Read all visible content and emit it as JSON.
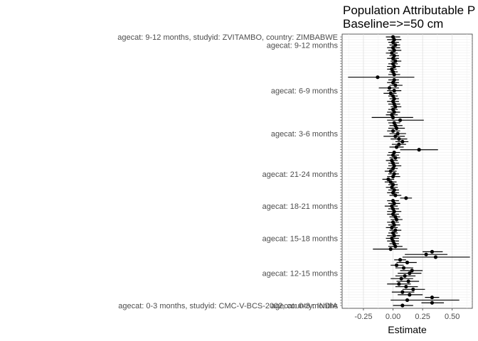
{
  "chart_data": {
    "type": "forest",
    "title": "Population Attributable P",
    "subtitle": "Baseline=>=50 cm",
    "xlabel": "Estimate",
    "ylabel": "",
    "xlim": [
      -0.43,
      0.67
    ],
    "x_ticks": [
      -0.25,
      0.0,
      0.25,
      0.5
    ],
    "x_tick_labels": [
      "-0.25",
      "0.00",
      "0.25",
      "0.50"
    ],
    "grid": true,
    "y_tick_labels_visible": [
      "agecat: 9-12 months, studyid: ZVITAMBO, country: ZIMBABWE",
      "agecat: 9-12 months",
      "agecat: 6-9 months",
      "agecat: 3-6 months",
      "agecat: 21-24 months",
      "agecat: 18-21 months",
      "agecat: 15-18 months",
      "agecat: 12-15 months",
      "agecat: 0-3 months",
      "agecat: 0-3 months, studyid: CMC-V-BCS-2002, country: INDIA"
    ],
    "point_color": "#000000",
    "points": [
      {
        "est": 0.0,
        "lo": -0.06,
        "hi": 0.06
      },
      {
        "est": 0.01,
        "lo": -0.05,
        "hi": 0.07
      },
      {
        "est": 0.0,
        "lo": -0.04,
        "hi": 0.05
      },
      {
        "est": 0.02,
        "lo": -0.03,
        "hi": 0.06
      },
      {
        "est": 0.0,
        "lo": -0.05,
        "hi": 0.06
      },
      {
        "est": 0.01,
        "lo": -0.04,
        "hi": 0.07
      },
      {
        "est": -0.01,
        "lo": -0.06,
        "hi": 0.04
      },
      {
        "est": 0.01,
        "lo": -0.03,
        "hi": 0.05
      },
      {
        "est": 0.0,
        "lo": -0.05,
        "hi": 0.05
      },
      {
        "est": 0.02,
        "lo": -0.02,
        "hi": 0.07
      },
      {
        "est": 0.0,
        "lo": -0.04,
        "hi": 0.04
      },
      {
        "est": 0.01,
        "lo": -0.05,
        "hi": 0.06
      },
      {
        "est": -0.01,
        "lo": -0.05,
        "hi": 0.03
      },
      {
        "est": 0.0,
        "lo": -0.03,
        "hi": 0.04
      },
      {
        "est": 0.01,
        "lo": -0.04,
        "hi": 0.06
      },
      {
        "est": -0.13,
        "lo": -0.38,
        "hi": 0.18
      },
      {
        "est": 0.01,
        "lo": -0.04,
        "hi": 0.05
      },
      {
        "est": 0.0,
        "lo": -0.05,
        "hi": 0.05
      },
      {
        "est": 0.02,
        "lo": -0.03,
        "hi": 0.08
      },
      {
        "est": -0.03,
        "lo": -0.12,
        "hi": 0.05
      },
      {
        "est": 0.01,
        "lo": -0.05,
        "hi": 0.07
      },
      {
        "est": -0.02,
        "lo": -0.08,
        "hi": 0.03
      },
      {
        "est": 0.0,
        "lo": -0.04,
        "hi": 0.04
      },
      {
        "est": 0.01,
        "lo": -0.03,
        "hi": 0.05
      },
      {
        "est": 0.0,
        "lo": -0.05,
        "hi": 0.05
      },
      {
        "est": 0.01,
        "lo": -0.04,
        "hi": 0.06
      },
      {
        "est": 0.02,
        "lo": -0.02,
        "hi": 0.07
      },
      {
        "est": 0.0,
        "lo": -0.04,
        "hi": 0.04
      },
      {
        "est": 0.01,
        "lo": -0.05,
        "hi": 0.06
      },
      {
        "est": -0.01,
        "lo": -0.06,
        "hi": 0.04
      },
      {
        "est": 0.0,
        "lo": -0.18,
        "hi": 0.17
      },
      {
        "est": 0.06,
        "lo": -0.05,
        "hi": 0.26
      },
      {
        "est": 0.01,
        "lo": -0.04,
        "hi": 0.06
      },
      {
        "est": 0.02,
        "lo": -0.03,
        "hi": 0.08
      },
      {
        "est": 0.03,
        "lo": -0.04,
        "hi": 0.1
      },
      {
        "est": 0.0,
        "lo": -0.05,
        "hi": 0.06
      },
      {
        "est": 0.04,
        "lo": -0.03,
        "hi": 0.11
      },
      {
        "est": 0.02,
        "lo": -0.08,
        "hi": 0.1
      },
      {
        "est": 0.05,
        "lo": -0.02,
        "hi": 0.12
      },
      {
        "est": 0.08,
        "lo": 0.02,
        "hi": 0.13
      },
      {
        "est": 0.05,
        "lo": -0.01,
        "hi": 0.11
      },
      {
        "est": 0.03,
        "lo": -0.03,
        "hi": 0.09
      },
      {
        "est": 0.22,
        "lo": 0.06,
        "hi": 0.38
      },
      {
        "est": 0.01,
        "lo": -0.04,
        "hi": 0.06
      },
      {
        "est": 0.0,
        "lo": -0.05,
        "hi": 0.05
      },
      {
        "est": 0.02,
        "lo": -0.03,
        "hi": 0.06
      },
      {
        "est": -0.01,
        "lo": -0.06,
        "hi": 0.04
      },
      {
        "est": 0.0,
        "lo": -0.04,
        "hi": 0.05
      },
      {
        "est": 0.01,
        "lo": -0.04,
        "hi": 0.07
      },
      {
        "est": 0.0,
        "lo": -0.05,
        "hi": 0.04
      },
      {
        "est": -0.02,
        "lo": -0.07,
        "hi": 0.03
      },
      {
        "est": 0.01,
        "lo": -0.04,
        "hi": 0.05
      },
      {
        "est": 0.0,
        "lo": -0.05,
        "hi": 0.06
      },
      {
        "est": -0.04,
        "lo": -0.09,
        "hi": 0.01
      },
      {
        "est": -0.02,
        "lo": -0.07,
        "hi": 0.03
      },
      {
        "est": 0.0,
        "lo": -0.04,
        "hi": 0.04
      },
      {
        "est": -0.01,
        "lo": -0.06,
        "hi": 0.04
      },
      {
        "est": 0.01,
        "lo": -0.04,
        "hi": 0.05
      },
      {
        "est": 0.0,
        "lo": -0.05,
        "hi": 0.05
      },
      {
        "est": 0.02,
        "lo": -0.03,
        "hi": 0.07
      },
      {
        "est": 0.11,
        "lo": 0.06,
        "hi": 0.16
      },
      {
        "est": 0.0,
        "lo": -0.05,
        "hi": 0.05
      },
      {
        "est": 0.01,
        "lo": -0.04,
        "hi": 0.06
      },
      {
        "est": -0.01,
        "lo": -0.07,
        "hi": 0.04
      },
      {
        "est": 0.0,
        "lo": -0.04,
        "hi": 0.05
      },
      {
        "est": 0.01,
        "lo": -0.05,
        "hi": 0.07
      },
      {
        "est": 0.0,
        "lo": -0.05,
        "hi": 0.05
      },
      {
        "est": 0.02,
        "lo": -0.03,
        "hi": 0.06
      },
      {
        "est": 0.03,
        "lo": -0.02,
        "hi": 0.08
      },
      {
        "est": 0.0,
        "lo": -0.05,
        "hi": 0.05
      },
      {
        "est": 0.01,
        "lo": -0.04,
        "hi": 0.06
      },
      {
        "est": -0.01,
        "lo": -0.06,
        "hi": 0.04
      },
      {
        "est": 0.02,
        "lo": -0.03,
        "hi": 0.07
      },
      {
        "est": 0.0,
        "lo": -0.04,
        "hi": 0.04
      },
      {
        "est": 0.01,
        "lo": -0.05,
        "hi": 0.06
      },
      {
        "est": -0.01,
        "lo": -0.06,
        "hi": 0.05
      },
      {
        "est": 0.0,
        "lo": -0.05,
        "hi": 0.05
      },
      {
        "est": 0.01,
        "lo": -0.03,
        "hi": 0.05
      },
      {
        "est": 0.02,
        "lo": -0.04,
        "hi": 0.08
      },
      {
        "est": -0.02,
        "lo": -0.17,
        "hi": 0.12
      },
      {
        "est": 0.33,
        "lo": 0.25,
        "hi": 0.42
      },
      {
        "est": 0.28,
        "lo": 0.1,
        "hi": 0.46
      },
      {
        "est": 0.36,
        "lo": 0.08,
        "hi": 0.65
      },
      {
        "est": 0.06,
        "lo": 0.01,
        "hi": 0.11
      },
      {
        "est": 0.12,
        "lo": 0.03,
        "hi": 0.2
      },
      {
        "est": 0.03,
        "lo": -0.02,
        "hi": 0.09
      },
      {
        "est": 0.09,
        "lo": 0.02,
        "hi": 0.17
      },
      {
        "est": 0.16,
        "lo": 0.06,
        "hi": 0.25
      },
      {
        "est": 0.14,
        "lo": 0.04,
        "hi": 0.24
      },
      {
        "est": 0.1,
        "lo": 0.02,
        "hi": 0.19
      },
      {
        "est": 0.07,
        "lo": -0.02,
        "hi": 0.17
      },
      {
        "est": 0.13,
        "lo": 0.03,
        "hi": 0.22
      },
      {
        "est": 0.05,
        "lo": -0.05,
        "hi": 0.15
      },
      {
        "est": 0.11,
        "lo": 0.02,
        "hi": 0.21
      },
      {
        "est": 0.17,
        "lo": 0.08,
        "hi": 0.27
      },
      {
        "est": 0.08,
        "lo": -0.01,
        "hi": 0.18
      },
      {
        "est": 0.14,
        "lo": 0.04,
        "hi": 0.25
      },
      {
        "est": 0.33,
        "lo": 0.27,
        "hi": 0.39
      },
      {
        "est": 0.12,
        "lo": -0.02,
        "hi": 0.56
      },
      {
        "est": 0.33,
        "lo": 0.24,
        "hi": 0.43
      },
      {
        "est": 0.08,
        "lo": 0.0,
        "hi": 0.17
      }
    ]
  }
}
